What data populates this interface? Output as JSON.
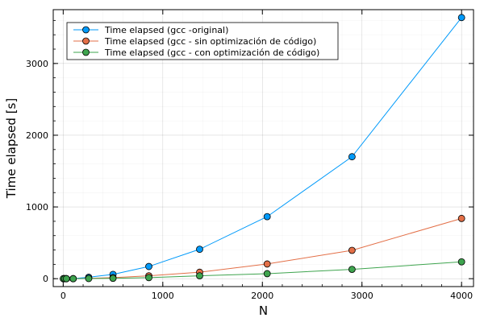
{
  "chart_data": {
    "type": "line",
    "xlabel": "N",
    "ylabel": "Time elapsed [s]",
    "xlim": [
      -100,
      4120
    ],
    "ylim": [
      -110,
      3750
    ],
    "xticks": [
      0,
      1000,
      2000,
      3000,
      4000
    ],
    "yticks": [
      0,
      1000,
      2000,
      3000
    ],
    "xtick_labels": [
      "0",
      "1000",
      "2000",
      "3000",
      "4000"
    ],
    "ytick_labels": [
      "0",
      "1000",
      "2000",
      "3000"
    ],
    "grid": true,
    "legend_position": "top-left",
    "x": [
      2,
      16,
      32,
      100,
      256,
      500,
      860,
      1370,
      2048,
      2900,
      4000
    ],
    "series": [
      {
        "name": "Time elapsed (gcc -original)",
        "color": "#009AFA",
        "values": [
          0,
          0,
          0,
          1,
          20,
          60,
          170,
          410,
          865,
          1700,
          3640
        ]
      },
      {
        "name": "Time elapsed (gcc - sin optimización de código)",
        "color": "#E36F47",
        "values": [
          0,
          0,
          0,
          0,
          5,
          15,
          40,
          90,
          205,
          395,
          840
        ]
      },
      {
        "name": "Time elapsed (gcc - con optimización de código)",
        "color": "#3EA44E",
        "values": [
          0,
          0,
          0,
          0,
          2,
          5,
          15,
          40,
          70,
          130,
          235
        ]
      }
    ]
  }
}
